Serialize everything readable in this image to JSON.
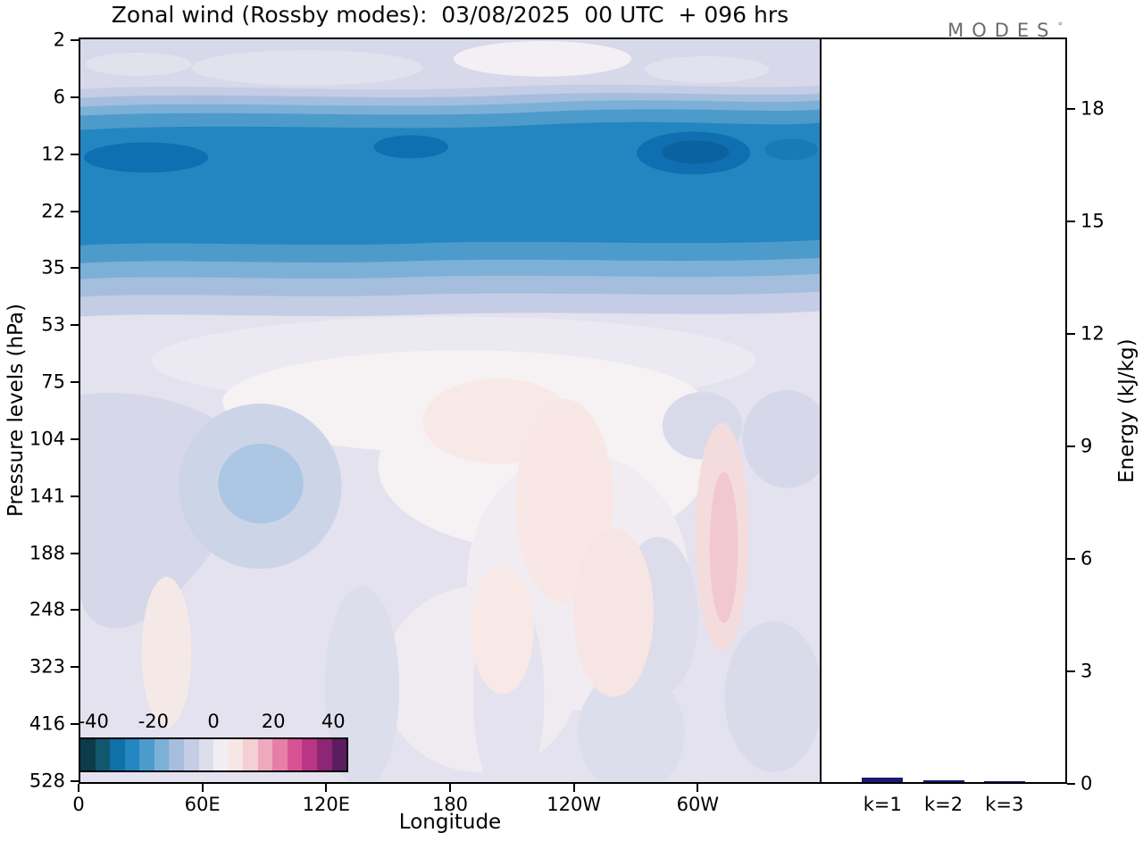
{
  "title": "Zonal wind (Rossby modes):  03/08/2025  00 UTC  + 096 hrs",
  "logo": {
    "text": "MODES",
    "mark": "°"
  },
  "axes": {
    "pressure_label": "Pressure levels (hPa)",
    "longitude_label": "Longitude",
    "energy_label": "Energy (kJ/kg)",
    "pressure_ticks": [
      "2",
      "6",
      "12",
      "22",
      "35",
      "53",
      "75",
      "104",
      "141",
      "188",
      "248",
      "323",
      "416",
      "528"
    ],
    "longitude_ticks": [
      "0",
      "60E",
      "120E",
      "180",
      "120W",
      "60W"
    ],
    "energy_ticks": [
      "0",
      "3",
      "6",
      "9",
      "12",
      "15",
      "18"
    ]
  },
  "colorbar": {
    "tick_labels": [
      "-40",
      "-20",
      "0",
      "20",
      "40"
    ],
    "value_range": [
      -45,
      45
    ],
    "colors": [
      "#0d3b49",
      "#11586e",
      "#1070a8",
      "#2486c1",
      "#4d9bcb",
      "#7cb0d7",
      "#a5bede",
      "#c4cde5",
      "#dddeeb",
      "#f1edf2",
      "#f8e6e4",
      "#f4cfd3",
      "#eea9bf",
      "#e67ea7",
      "#d85192",
      "#b93585",
      "#8d2674",
      "#5c1c60"
    ]
  },
  "energy_panel": {
    "categories": [
      "k=1",
      "k=2",
      "k=3"
    ],
    "values_kj_per_kg": [
      0.12,
      0.04,
      0.02
    ],
    "bar_color": "#1a1a78"
  },
  "chart_data": [
    {
      "type": "heatmap",
      "title": "Zonal wind (Rossby modes):  03/08/2025  00 UTC  + 096 hrs",
      "xlabel": "Longitude",
      "ylabel": "Pressure levels (hPa)",
      "x_tick_labels": [
        "0",
        "60E",
        "120E",
        "180",
        "120W",
        "60W"
      ],
      "y_tick_labels": [
        "2",
        "6",
        "12",
        "22",
        "35",
        "53",
        "75",
        "104",
        "141",
        "188",
        "248",
        "323",
        "416",
        "528"
      ],
      "longitudes_deg": [
        0,
        60,
        120,
        180,
        240,
        300,
        355
      ],
      "pressure_levels_hpa": [
        2,
        6,
        12,
        22,
        35,
        53,
        75,
        104,
        141,
        188,
        248,
        323,
        416,
        528
      ],
      "values_mps": [
        [
          -4,
          -5,
          -3,
          -2,
          -4,
          -5,
          -4
        ],
        [
          -12,
          -14,
          -12,
          -13,
          -12,
          -15,
          -13
        ],
        [
          -34,
          -30,
          -33,
          -36,
          -30,
          -38,
          -33
        ],
        [
          -30,
          -28,
          -30,
          -30,
          -28,
          -32,
          -30
        ],
        [
          -14,
          -13,
          -14,
          -15,
          -13,
          -15,
          -14
        ],
        [
          -6,
          -6,
          -5,
          -4,
          -5,
          -6,
          -6
        ],
        [
          -4,
          -3,
          -2,
          0,
          1,
          -2,
          -3
        ],
        [
          -5,
          -6,
          -3,
          2,
          1,
          -3,
          -4
        ],
        [
          -6,
          -11,
          -4,
          2,
          3,
          -4,
          -5
        ],
        [
          -5,
          -6,
          -3,
          1,
          2,
          6,
          -4
        ],
        [
          -4,
          -5,
          -2,
          0,
          1,
          3,
          -3
        ],
        [
          -3,
          -2,
          -1,
          0,
          -2,
          -2,
          -3
        ],
        [
          -2,
          -2,
          -1,
          -1,
          -2,
          -2,
          -2
        ],
        [
          -2,
          -1,
          -1,
          -1,
          -1,
          -2,
          -2
        ]
      ],
      "colorbar_ticks": [
        -40,
        -20,
        0,
        20,
        40
      ],
      "colorbar_range": [
        -45,
        45
      ],
      "legend_position": "inside-bottom-left",
      "grid": false
    },
    {
      "type": "bar",
      "categories": [
        "k=1",
        "k=2",
        "k=3"
      ],
      "values": [
        0.12,
        0.04,
        0.02
      ],
      "ylabel": "Energy (kJ/kg)",
      "y_ticks": [
        0,
        3,
        6,
        9,
        12,
        15,
        18
      ],
      "ylim": [
        0,
        19.9
      ],
      "bar_color": "#1a1a78",
      "grid": false
    }
  ]
}
